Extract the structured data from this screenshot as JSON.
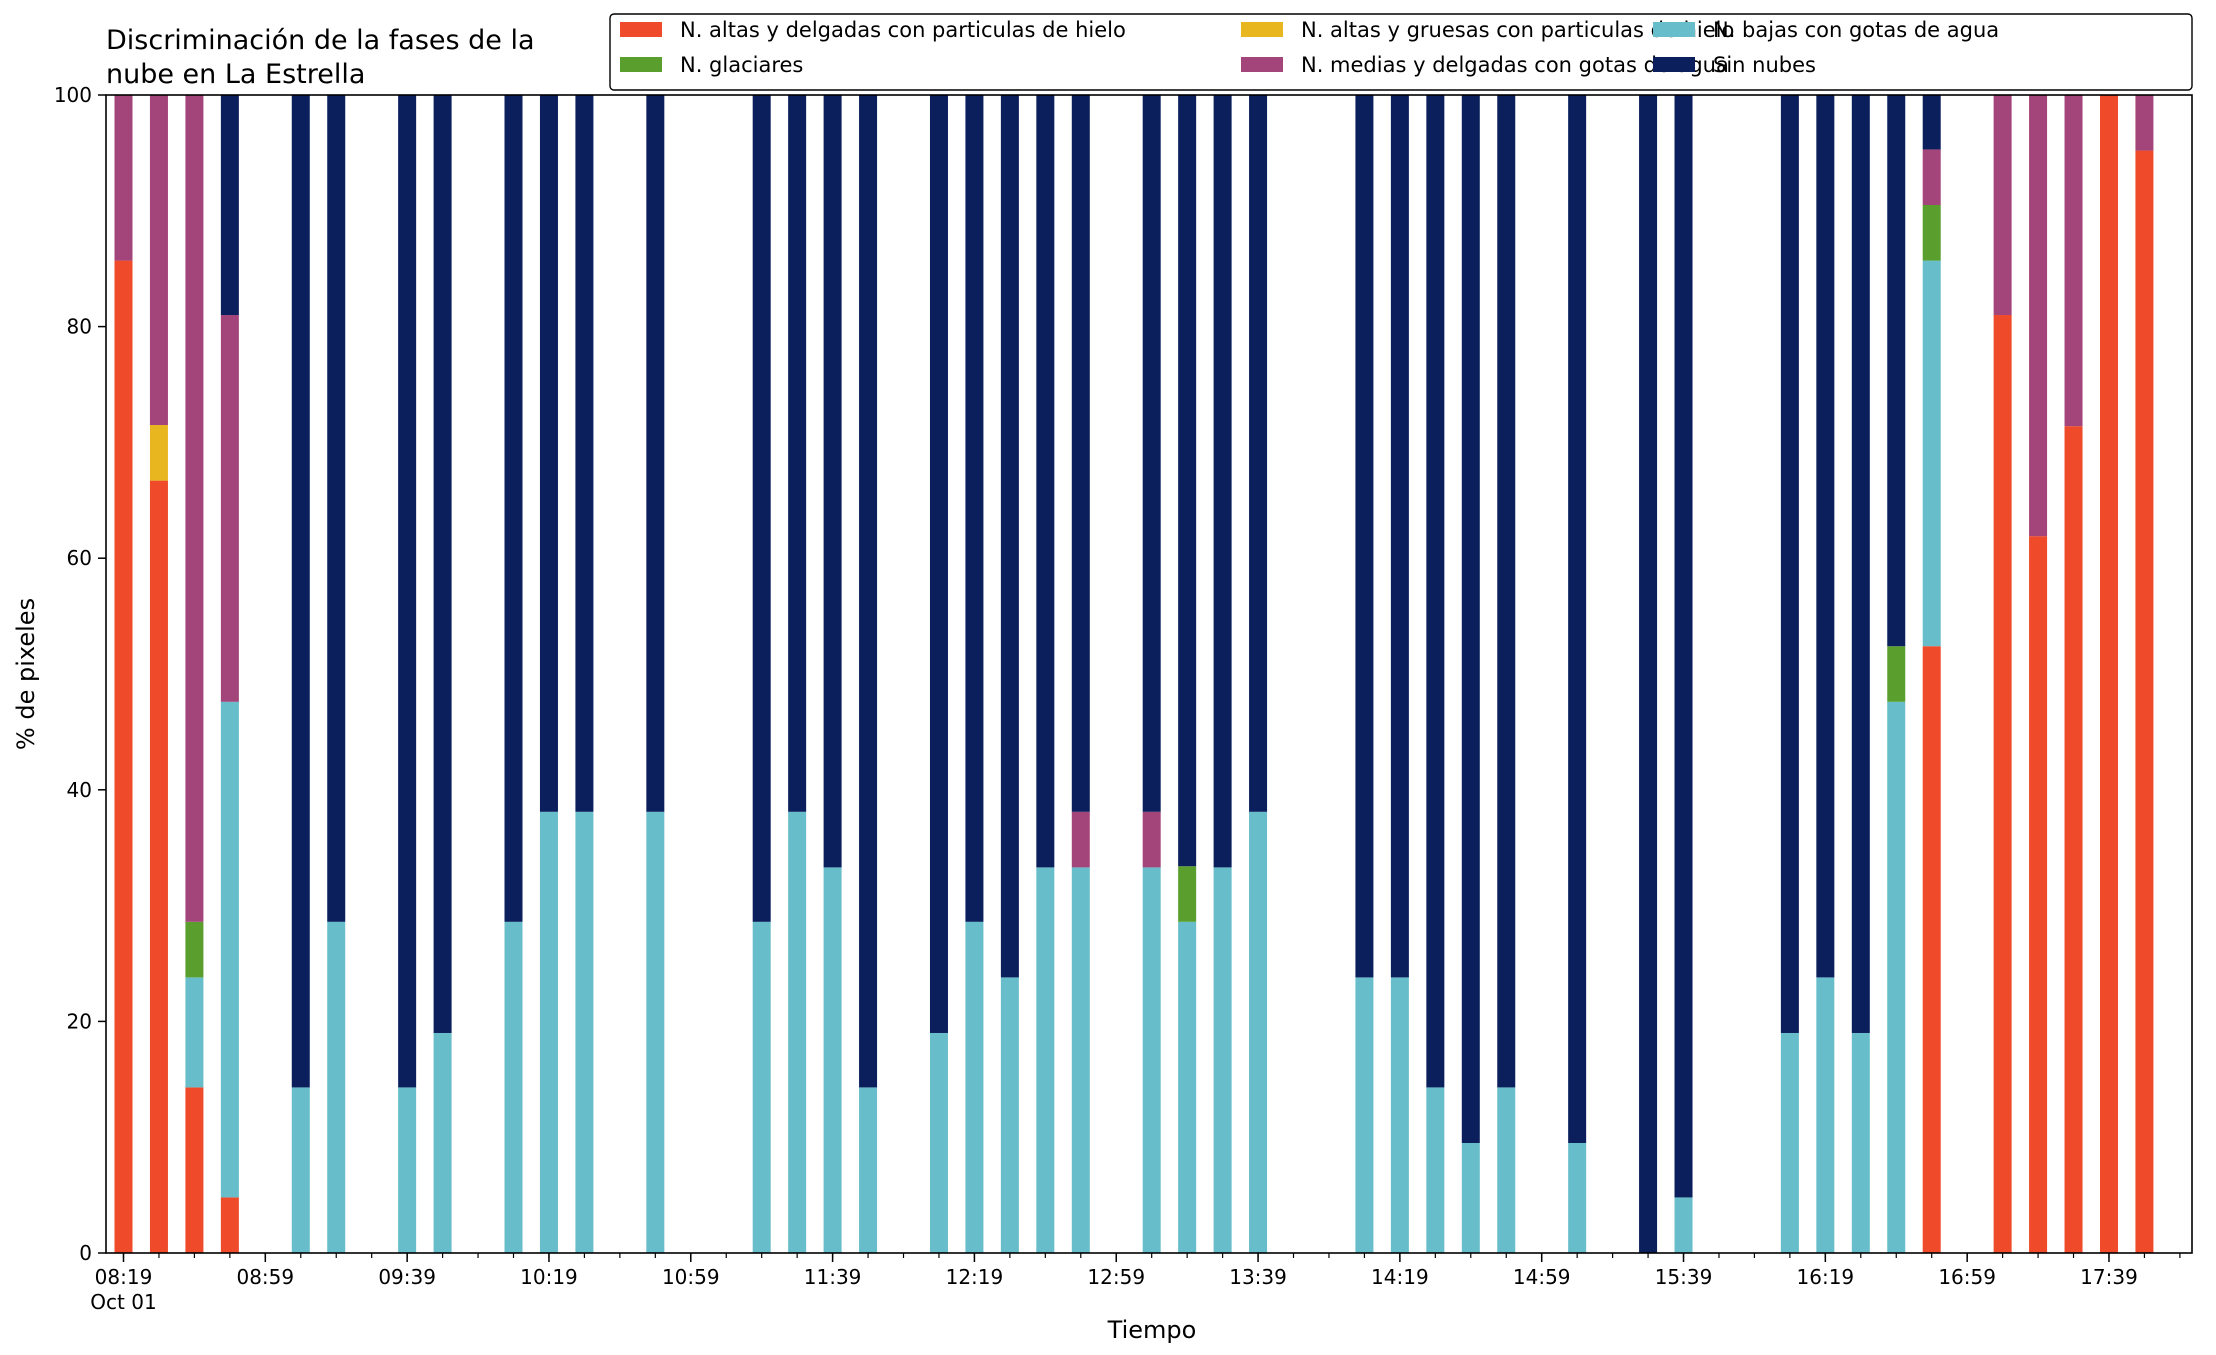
{
  "chart_data": {
    "type": "bar",
    "stacked": true,
    "title_lines": [
      "Discriminación de la fases de la",
      "nube en La Estrella"
    ],
    "xlabel": "Tiempo",
    "ylabel": "% de pixeles",
    "ylim": [
      0,
      100
    ],
    "yticks": [
      0,
      20,
      40,
      60,
      80,
      100
    ],
    "xlim": [
      0,
      590
    ],
    "xticks": [
      {
        "x": 0,
        "label": "08:19",
        "sublabel": "Oct 01"
      },
      {
        "x": 40,
        "label": "08:59"
      },
      {
        "x": 80,
        "label": "09:39"
      },
      {
        "x": 120,
        "label": "10:19"
      },
      {
        "x": 160,
        "label": "10:59"
      },
      {
        "x": 200,
        "label": "11:39"
      },
      {
        "x": 240,
        "label": "12:19"
      },
      {
        "x": 280,
        "label": "12:59"
      },
      {
        "x": 320,
        "label": "13:39"
      },
      {
        "x": 360,
        "label": "14:19"
      },
      {
        "x": 400,
        "label": "14:59"
      },
      {
        "x": 440,
        "label": "15:39"
      },
      {
        "x": 480,
        "label": "16:19"
      },
      {
        "x": 520,
        "label": "16:59"
      },
      {
        "x": 560,
        "label": "17:39"
      }
    ],
    "minor_tick_step": 10,
    "legend_position": "top-right",
    "legend_columns": 3,
    "series": [
      {
        "key": "altas_delgadas",
        "name": "N. altas y delgadas con particulas de hielo",
        "color": "#EF4A2A"
      },
      {
        "key": "altas_gruesas",
        "name": "N. altas y gruesas con particulas de hielo",
        "color": "#E8B71F"
      },
      {
        "key": "bajas",
        "name": "N. bajas con gotas de agua",
        "color": "#67BDC9"
      },
      {
        "key": "glaciares",
        "name": "N. glaciares",
        "color": "#5A9E2E"
      },
      {
        "key": "medias",
        "name": "N. medias y delgadas con gotas de agua",
        "color": "#A3447A"
      },
      {
        "key": "sin",
        "name": "Sin nubes",
        "color": "#0A1F5C"
      }
    ],
    "stack_order": [
      "altas_delgadas",
      "altas_gruesas",
      "bajas",
      "glaciares",
      "medias",
      "sin"
    ],
    "bars": [
      {
        "x": 0,
        "altas_delgadas": 85.7,
        "altas_gruesas": 0,
        "bajas": 0,
        "glaciares": 0,
        "medias": 14.3,
        "sin": 0
      },
      {
        "x": 10,
        "altas_delgadas": 66.7,
        "altas_gruesas": 4.8,
        "bajas": 0,
        "glaciares": 0,
        "medias": 28.5,
        "sin": 0
      },
      {
        "x": 20,
        "altas_delgadas": 14.3,
        "altas_gruesas": 0,
        "bajas": 9.5,
        "glaciares": 4.8,
        "medias": 71.4,
        "sin": 0
      },
      {
        "x": 30,
        "altas_delgadas": 4.8,
        "altas_gruesas": 0,
        "bajas": 42.8,
        "glaciares": 0,
        "medias": 33.4,
        "sin": 19.0
      },
      {
        "x": 50,
        "altas_delgadas": 0,
        "altas_gruesas": 0,
        "bajas": 14.3,
        "glaciares": 0,
        "medias": 0,
        "sin": 85.7
      },
      {
        "x": 60,
        "altas_delgadas": 0,
        "altas_gruesas": 0,
        "bajas": 28.6,
        "glaciares": 0,
        "medias": 0,
        "sin": 71.4
      },
      {
        "x": 80,
        "altas_delgadas": 0,
        "altas_gruesas": 0,
        "bajas": 14.3,
        "glaciares": 0,
        "medias": 0,
        "sin": 85.7
      },
      {
        "x": 90,
        "altas_delgadas": 0,
        "altas_gruesas": 0,
        "bajas": 19.0,
        "glaciares": 0,
        "medias": 0,
        "sin": 81.0
      },
      {
        "x": 110,
        "altas_delgadas": 0,
        "altas_gruesas": 0,
        "bajas": 28.6,
        "glaciares": 0,
        "medias": 0,
        "sin": 71.4
      },
      {
        "x": 120,
        "altas_delgadas": 0,
        "altas_gruesas": 0,
        "bajas": 38.1,
        "glaciares": 0,
        "medias": 0,
        "sin": 61.9
      },
      {
        "x": 130,
        "altas_delgadas": 0,
        "altas_gruesas": 0,
        "bajas": 38.1,
        "glaciares": 0,
        "medias": 0,
        "sin": 61.9
      },
      {
        "x": 150,
        "altas_delgadas": 0,
        "altas_gruesas": 0,
        "bajas": 38.1,
        "glaciares": 0,
        "medias": 0,
        "sin": 61.9
      },
      {
        "x": 180,
        "altas_delgadas": 0,
        "altas_gruesas": 0,
        "bajas": 28.6,
        "glaciares": 0,
        "medias": 0,
        "sin": 71.4
      },
      {
        "x": 190,
        "altas_delgadas": 0,
        "altas_gruesas": 0,
        "bajas": 38.1,
        "glaciares": 0,
        "medias": 0,
        "sin": 61.9
      },
      {
        "x": 200,
        "altas_delgadas": 0,
        "altas_gruesas": 0,
        "bajas": 33.3,
        "glaciares": 0,
        "medias": 0,
        "sin": 66.7
      },
      {
        "x": 210,
        "altas_delgadas": 0,
        "altas_gruesas": 0,
        "bajas": 14.3,
        "glaciares": 0,
        "medias": 0,
        "sin": 85.7
      },
      {
        "x": 230,
        "altas_delgadas": 0,
        "altas_gruesas": 0,
        "bajas": 19.0,
        "glaciares": 0,
        "medias": 0,
        "sin": 81.0
      },
      {
        "x": 240,
        "altas_delgadas": 0,
        "altas_gruesas": 0,
        "bajas": 28.6,
        "glaciares": 0,
        "medias": 0,
        "sin": 71.4
      },
      {
        "x": 250,
        "altas_delgadas": 0,
        "altas_gruesas": 0,
        "bajas": 23.8,
        "glaciares": 0,
        "medias": 0,
        "sin": 76.2
      },
      {
        "x": 260,
        "altas_delgadas": 0,
        "altas_gruesas": 0,
        "bajas": 33.3,
        "glaciares": 0,
        "medias": 0,
        "sin": 66.7
      },
      {
        "x": 270,
        "altas_delgadas": 0,
        "altas_gruesas": 0,
        "bajas": 33.3,
        "glaciares": 0,
        "medias": 4.8,
        "sin": 61.9
      },
      {
        "x": 290,
        "altas_delgadas": 0,
        "altas_gruesas": 0,
        "bajas": 33.3,
        "glaciares": 0,
        "medias": 4.8,
        "sin": 61.9
      },
      {
        "x": 300,
        "altas_delgadas": 0,
        "altas_gruesas": 0,
        "bajas": 28.6,
        "glaciares": 4.8,
        "medias": 0,
        "sin": 66.6
      },
      {
        "x": 310,
        "altas_delgadas": 0,
        "altas_gruesas": 0,
        "bajas": 33.3,
        "glaciares": 0,
        "medias": 0,
        "sin": 66.7
      },
      {
        "x": 320,
        "altas_delgadas": 0,
        "altas_gruesas": 0,
        "bajas": 38.1,
        "glaciares": 0,
        "medias": 0,
        "sin": 61.9
      },
      {
        "x": 350,
        "altas_delgadas": 0,
        "altas_gruesas": 0,
        "bajas": 23.8,
        "glaciares": 0,
        "medias": 0,
        "sin": 76.2
      },
      {
        "x": 360,
        "altas_delgadas": 0,
        "altas_gruesas": 0,
        "bajas": 23.8,
        "glaciares": 0,
        "medias": 0,
        "sin": 76.2
      },
      {
        "x": 370,
        "altas_delgadas": 0,
        "altas_gruesas": 0,
        "bajas": 14.3,
        "glaciares": 0,
        "medias": 0,
        "sin": 85.7
      },
      {
        "x": 380,
        "altas_delgadas": 0,
        "altas_gruesas": 0,
        "bajas": 9.5,
        "glaciares": 0,
        "medias": 0,
        "sin": 90.5
      },
      {
        "x": 390,
        "altas_delgadas": 0,
        "altas_gruesas": 0,
        "bajas": 14.3,
        "glaciares": 0,
        "medias": 0,
        "sin": 85.7
      },
      {
        "x": 410,
        "altas_delgadas": 0,
        "altas_gruesas": 0,
        "bajas": 9.5,
        "glaciares": 0,
        "medias": 0,
        "sin": 90.5
      },
      {
        "x": 430,
        "altas_delgadas": 0,
        "altas_gruesas": 0,
        "bajas": 0,
        "glaciares": 0,
        "medias": 0,
        "sin": 100
      },
      {
        "x": 440,
        "altas_delgadas": 0,
        "altas_gruesas": 0,
        "bajas": 4.8,
        "glaciares": 0,
        "medias": 0,
        "sin": 95.2
      },
      {
        "x": 470,
        "altas_delgadas": 0,
        "altas_gruesas": 0,
        "bajas": 19.0,
        "glaciares": 0,
        "medias": 0,
        "sin": 81.0
      },
      {
        "x": 480,
        "altas_delgadas": 0,
        "altas_gruesas": 0,
        "bajas": 23.8,
        "glaciares": 0,
        "medias": 0,
        "sin": 76.2
      },
      {
        "x": 490,
        "altas_delgadas": 0,
        "altas_gruesas": 0,
        "bajas": 19.0,
        "glaciares": 0,
        "medias": 0,
        "sin": 81.0
      },
      {
        "x": 500,
        "altas_delgadas": 0,
        "altas_gruesas": 0,
        "bajas": 47.6,
        "glaciares": 4.8,
        "medias": 0,
        "sin": 47.6
      },
      {
        "x": 510,
        "altas_delgadas": 52.4,
        "altas_gruesas": 0,
        "bajas": 33.3,
        "glaciares": 4.8,
        "medias": 4.8,
        "sin": 4.7
      },
      {
        "x": 530,
        "altas_delgadas": 81.0,
        "altas_gruesas": 0,
        "bajas": 0,
        "glaciares": 0,
        "medias": 19.0,
        "sin": 0
      },
      {
        "x": 540,
        "altas_delgadas": 61.9,
        "altas_gruesas": 0,
        "bajas": 0,
        "glaciares": 0,
        "medias": 38.1,
        "sin": 0
      },
      {
        "x": 550,
        "altas_delgadas": 71.4,
        "altas_gruesas": 0,
        "bajas": 0,
        "glaciares": 0,
        "medias": 28.6,
        "sin": 0
      },
      {
        "x": 560,
        "altas_delgadas": 100,
        "altas_gruesas": 0,
        "bajas": 0,
        "glaciares": 0,
        "medias": 0,
        "sin": 0
      },
      {
        "x": 570,
        "altas_delgadas": 95.2,
        "altas_gruesas": 0,
        "bajas": 0,
        "glaciares": 0,
        "medias": 4.8,
        "sin": 0
      }
    ]
  }
}
